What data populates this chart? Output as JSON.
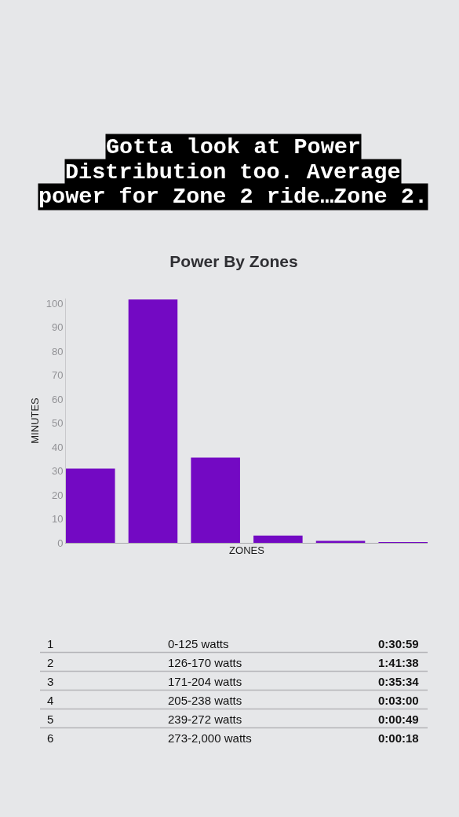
{
  "chart_data": {
    "type": "bar",
    "title": "Power By Zones",
    "xlabel": "ZONES",
    "ylabel": "MINUTES",
    "categories": [
      null,
      null,
      null,
      null,
      null,
      null
    ],
    "values": [
      31,
      101.6,
      35.6,
      3,
      0.8,
      0.3
    ],
    "color": "#7309c3",
    "ylim": [
      0,
      102
    ],
    "yticks": [
      0,
      10,
      20,
      30,
      40,
      50,
      60,
      70,
      80,
      90,
      100
    ],
    "annotations": [
      "Gotta look at Power Distribution too. Average power for Zone 2 ride…Zone 2.",
      "1",
      "0-125 watts",
      "0:30:59",
      "2",
      "126-170 watts",
      "1:41:38",
      "3",
      "171-204 watts",
      "0:35:34",
      "4",
      "205-238 watts",
      "0:03:00",
      "5",
      "239-272 watts",
      "0:00:49",
      "6",
      "273-2,000 watts",
      "0:00:18"
    ]
  }
}
